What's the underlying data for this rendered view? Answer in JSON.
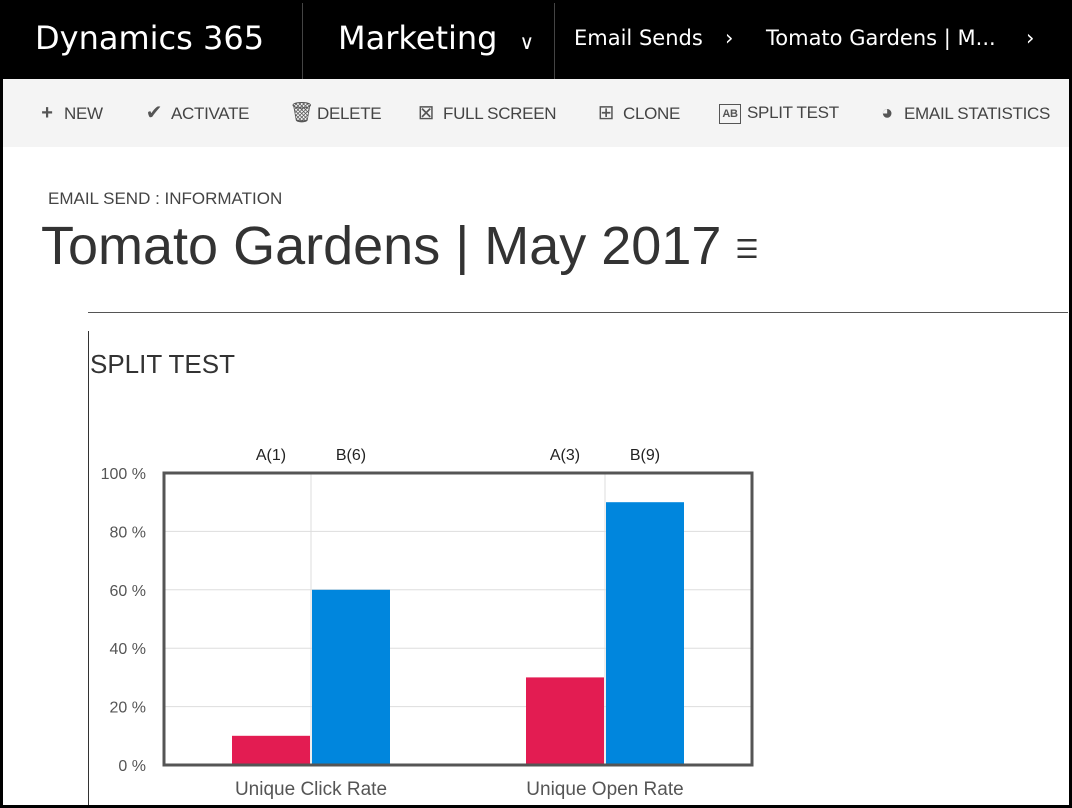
{
  "nav": {
    "app": "Dynamics 365",
    "module": "Marketing",
    "breadcrumb": [
      "Email Sends",
      "Tomato Gardens | M..."
    ]
  },
  "commands": [
    {
      "label": "NEW",
      "icon": "plus-icon"
    },
    {
      "label": "ACTIVATE",
      "icon": "check-icon"
    },
    {
      "label": "DELETE",
      "icon": "trash-icon"
    },
    {
      "label": "FULL SCREEN",
      "icon": "full-screen-icon"
    },
    {
      "label": "CLONE",
      "icon": "clone-icon"
    },
    {
      "label": "SPLIT TEST",
      "icon": "split-test-icon"
    },
    {
      "label": "EMAIL STATISTICS",
      "icon": "pie-chart-icon"
    }
  ],
  "form": {
    "crumb": "EMAIL SEND : INFORMATION",
    "title": "Tomato Gardens | May 2017",
    "section": "SPLIT TEST"
  },
  "chart_data": {
    "type": "bar",
    "categories": [
      "Unique Click Rate",
      "Unique Open Rate"
    ],
    "series": [
      {
        "values": [
          10,
          30
        ],
        "color": "#e31c52"
      },
      {
        "values": [
          60,
          90
        ],
        "color": "#0086dd"
      }
    ],
    "top_labels": [
      [
        "A(1)",
        "B(6)"
      ],
      [
        "A(3)",
        "B(9)"
      ]
    ],
    "yticks": [
      "0 %",
      "20 %",
      "40 %",
      "60 %",
      "80 %",
      "100 %"
    ],
    "ylim": [
      0,
      100
    ],
    "grid": true
  }
}
